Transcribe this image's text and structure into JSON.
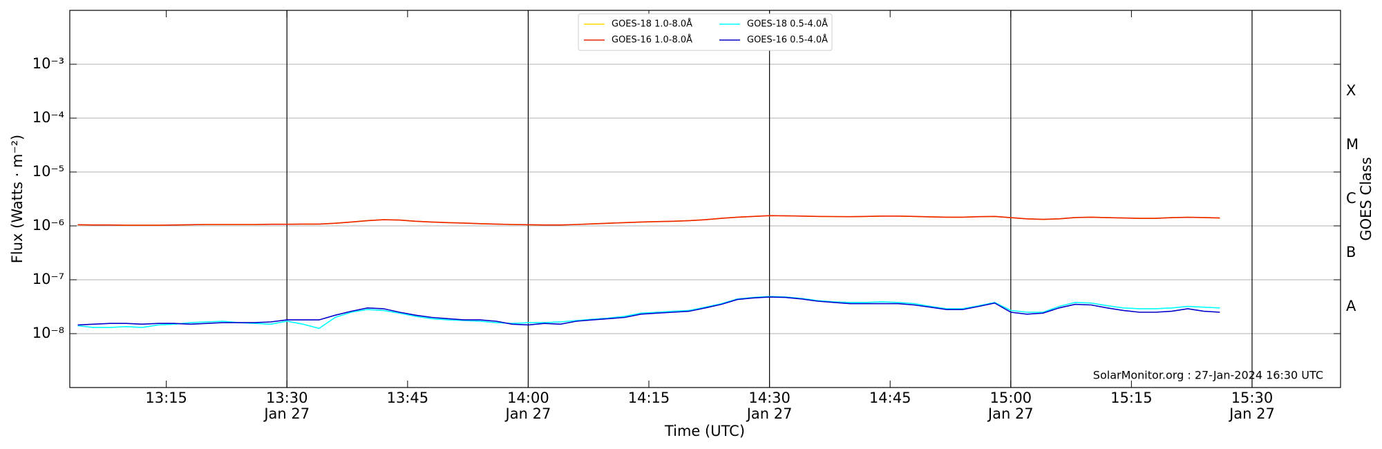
{
  "chart_data": {
    "type": "line",
    "ylabel": "Flux (Watts · m⁻²)",
    "xlabel": "Time (UTC)",
    "y2label": "GOES Class",
    "annotation": "SolarMonitor.org : 27-Jan-2024 16:30 UTC",
    "ylog": true,
    "grid": "y",
    "legend": "top-center",
    "xlim": [
      "13:03",
      "15:41"
    ],
    "ylim": [
      1e-09,
      0.01
    ],
    "xticks": [
      {
        "value": "13:15",
        "label": [
          "13:15"
        ]
      },
      {
        "value": "13:30",
        "label": [
          "13:30",
          "Jan 27"
        ]
      },
      {
        "value": "13:45",
        "label": [
          "13:45"
        ]
      },
      {
        "value": "14:00",
        "label": [
          "14:00",
          "Jan 27"
        ]
      },
      {
        "value": "14:15",
        "label": [
          "14:15"
        ]
      },
      {
        "value": "14:30",
        "label": [
          "14:30",
          "Jan 27"
        ]
      },
      {
        "value": "14:45",
        "label": [
          "14:45"
        ]
      },
      {
        "value": "15:00",
        "label": [
          "15:00",
          "Jan 27"
        ]
      },
      {
        "value": "15:15",
        "label": [
          "15:15"
        ]
      },
      {
        "value": "15:30",
        "label": [
          "15:30",
          "Jan 27"
        ]
      }
    ],
    "yticks": [
      {
        "value": 1e-08,
        "label": "10⁻⁸"
      },
      {
        "value": 1e-07,
        "label": "10⁻⁷"
      },
      {
        "value": 1e-06,
        "label": "10⁻⁶"
      },
      {
        "value": 1e-05,
        "label": "10⁻⁵"
      },
      {
        "value": 0.0001,
        "label": "10⁻⁴"
      },
      {
        "value": 0.001,
        "label": "10⁻³"
      }
    ],
    "y2ticks": [
      {
        "value": 1e-08,
        "label": "A"
      },
      {
        "value": 1e-07,
        "label": "B"
      },
      {
        "value": 1e-06,
        "label": "C"
      },
      {
        "value": 1e-05,
        "label": "M"
      },
      {
        "value": 0.0001,
        "label": "X"
      }
    ],
    "x": [
      "13:04",
      "13:06",
      "13:08",
      "13:10",
      "13:12",
      "13:14",
      "13:16",
      "13:18",
      "13:20",
      "13:22",
      "13:24",
      "13:26",
      "13:28",
      "13:30",
      "13:32",
      "13:34",
      "13:36",
      "13:38",
      "13:40",
      "13:42",
      "13:44",
      "13:46",
      "13:48",
      "13:50",
      "13:52",
      "13:54",
      "13:56",
      "13:58",
      "14:00",
      "14:02",
      "14:04",
      "14:06",
      "14:08",
      "14:10",
      "14:12",
      "14:14",
      "14:16",
      "14:18",
      "14:20",
      "14:22",
      "14:24",
      "14:26",
      "14:28",
      "14:30",
      "14:32",
      "14:34",
      "14:36",
      "14:38",
      "14:40",
      "14:42",
      "14:44",
      "14:46",
      "14:48",
      "14:50",
      "14:52",
      "14:54",
      "14:56",
      "14:58",
      "15:00",
      "15:02",
      "15:04",
      "15:06",
      "15:08",
      "15:10",
      "15:12",
      "15:14",
      "15:16",
      "15:18",
      "15:20",
      "15:22",
      "15:24",
      "15:26"
    ],
    "series": [
      {
        "name": "GOES-18 1.0-8.0Å",
        "color": "#ffd700",
        "values": [
          1.05e-06,
          1.04e-06,
          1.04e-06,
          1.03e-06,
          1.03e-06,
          1.03e-06,
          1.04e-06,
          1.05e-06,
          1.06e-06,
          1.06e-06,
          1.06e-06,
          1.06e-06,
          1.07e-06,
          1.07e-06,
          1.08e-06,
          1.08e-06,
          1.12e-06,
          1.18e-06,
          1.25e-06,
          1.3e-06,
          1.28e-06,
          1.22e-06,
          1.18e-06,
          1.15e-06,
          1.13e-06,
          1.1e-06,
          1.08e-06,
          1.06e-06,
          1.05e-06,
          1.04e-06,
          1.04e-06,
          1.06e-06,
          1.09e-06,
          1.12e-06,
          1.15e-06,
          1.18e-06,
          1.2e-06,
          1.22e-06,
          1.25e-06,
          1.3e-06,
          1.38e-06,
          1.45e-06,
          1.5e-06,
          1.55e-06,
          1.54e-06,
          1.52e-06,
          1.5e-06,
          1.49e-06,
          1.48e-06,
          1.5e-06,
          1.52e-06,
          1.52e-06,
          1.5e-06,
          1.47e-06,
          1.45e-06,
          1.45e-06,
          1.48e-06,
          1.5e-06,
          1.42e-06,
          1.35e-06,
          1.32e-06,
          1.35e-06,
          1.43e-06,
          1.45e-06,
          1.42e-06,
          1.4e-06,
          1.38e-06,
          1.38e-06,
          1.42e-06,
          1.44e-06,
          1.43e-06,
          1.4e-06
        ]
      },
      {
        "name": "GOES-16 1.0-8.0Å",
        "color": "#ee2200",
        "values": [
          1.05e-06,
          1.04e-06,
          1.04e-06,
          1.03e-06,
          1.03e-06,
          1.03e-06,
          1.04e-06,
          1.05e-06,
          1.06e-06,
          1.06e-06,
          1.06e-06,
          1.06e-06,
          1.07e-06,
          1.07e-06,
          1.08e-06,
          1.08e-06,
          1.12e-06,
          1.18e-06,
          1.25e-06,
          1.3e-06,
          1.28e-06,
          1.22e-06,
          1.18e-06,
          1.15e-06,
          1.13e-06,
          1.1e-06,
          1.08e-06,
          1.06e-06,
          1.05e-06,
          1.04e-06,
          1.04e-06,
          1.06e-06,
          1.09e-06,
          1.12e-06,
          1.15e-06,
          1.18e-06,
          1.2e-06,
          1.22e-06,
          1.25e-06,
          1.3e-06,
          1.38e-06,
          1.45e-06,
          1.5e-06,
          1.55e-06,
          1.54e-06,
          1.52e-06,
          1.5e-06,
          1.49e-06,
          1.48e-06,
          1.5e-06,
          1.52e-06,
          1.52e-06,
          1.5e-06,
          1.47e-06,
          1.45e-06,
          1.45e-06,
          1.48e-06,
          1.5e-06,
          1.42e-06,
          1.35e-06,
          1.32e-06,
          1.35e-06,
          1.43e-06,
          1.45e-06,
          1.42e-06,
          1.4e-06,
          1.38e-06,
          1.38e-06,
          1.42e-06,
          1.44e-06,
          1.43e-06,
          1.4e-06
        ]
      },
      {
        "name": "GOES-18 0.5-4.0Å",
        "color": "#00ffff",
        "values": [
          1.4e-08,
          1.3e-08,
          1.3e-08,
          1.35e-08,
          1.3e-08,
          1.45e-08,
          1.5e-08,
          1.6e-08,
          1.65e-08,
          1.7e-08,
          1.6e-08,
          1.55e-08,
          1.5e-08,
          1.7e-08,
          1.5e-08,
          1.25e-08,
          2e-08,
          2.5e-08,
          2.8e-08,
          2.7e-08,
          2.4e-08,
          2.1e-08,
          1.9e-08,
          1.8e-08,
          1.75e-08,
          1.7e-08,
          1.6e-08,
          1.55e-08,
          1.6e-08,
          1.6e-08,
          1.65e-08,
          1.75e-08,
          1.85e-08,
          1.95e-08,
          2.1e-08,
          2.4e-08,
          2.5e-08,
          2.6e-08,
          2.7e-08,
          3.1e-08,
          3.6e-08,
          4.4e-08,
          4.7e-08,
          4.9e-08,
          4.8e-08,
          4.5e-08,
          4.1e-08,
          3.9e-08,
          3.8e-08,
          3.8e-08,
          3.9e-08,
          3.8e-08,
          3.6e-08,
          3.2e-08,
          2.9e-08,
          2.9e-08,
          3.3e-08,
          3.8e-08,
          2.7e-08,
          2.5e-08,
          2.5e-08,
          3.2e-08,
          3.8e-08,
          3.7e-08,
          3.3e-08,
          3e-08,
          2.9e-08,
          2.9e-08,
          3e-08,
          3.2e-08,
          3.1e-08,
          3e-08
        ]
      },
      {
        "name": "GOES-16 0.5-4.0Å",
        "color": "#0000cc",
        "values": [
          1.45e-08,
          1.5e-08,
          1.55e-08,
          1.55e-08,
          1.5e-08,
          1.55e-08,
          1.55e-08,
          1.5e-08,
          1.55e-08,
          1.6e-08,
          1.6e-08,
          1.6e-08,
          1.65e-08,
          1.8e-08,
          1.8e-08,
          1.8e-08,
          2.2e-08,
          2.6e-08,
          3e-08,
          2.9e-08,
          2.5e-08,
          2.2e-08,
          2e-08,
          1.9e-08,
          1.8e-08,
          1.8e-08,
          1.7e-08,
          1.5e-08,
          1.45e-08,
          1.55e-08,
          1.5e-08,
          1.7e-08,
          1.8e-08,
          1.9e-08,
          2e-08,
          2.3e-08,
          2.4e-08,
          2.5e-08,
          2.6e-08,
          3e-08,
          3.5e-08,
          4.3e-08,
          4.6e-08,
          4.8e-08,
          4.7e-08,
          4.4e-08,
          4e-08,
          3.8e-08,
          3.6e-08,
          3.6e-08,
          3.6e-08,
          3.6e-08,
          3.4e-08,
          3.1e-08,
          2.8e-08,
          2.8e-08,
          3.2e-08,
          3.7e-08,
          2.5e-08,
          2.3e-08,
          2.4e-08,
          3e-08,
          3.5e-08,
          3.4e-08,
          3e-08,
          2.7e-08,
          2.5e-08,
          2.5e-08,
          2.6e-08,
          2.9e-08,
          2.6e-08,
          2.5e-08
        ]
      }
    ]
  }
}
